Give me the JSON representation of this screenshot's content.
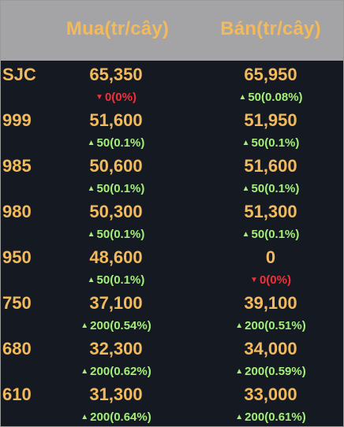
{
  "header": {
    "buy_label": "Mua(tr/cây)",
    "sell_label": "Bán(tr/cây)"
  },
  "colors": {
    "price": "#f2ba5c",
    "up": "#a3ef79",
    "down": "#f1303a",
    "background": "#151a22",
    "header_bg": "#a4a4a6"
  },
  "rows": [
    {
      "name": "SJC",
      "buy": "65,350",
      "sell": "65,950",
      "buy_change": "0(0%)",
      "buy_dir": "down",
      "sell_change": "50(0.08%)",
      "sell_dir": "up"
    },
    {
      "name": "999",
      "buy": "51,600",
      "sell": "51,950",
      "buy_change": "50(0.1%)",
      "buy_dir": "up",
      "sell_change": "50(0.1%)",
      "sell_dir": "up"
    },
    {
      "name": "985",
      "buy": "50,600",
      "sell": "51,600",
      "buy_change": "50(0.1%)",
      "buy_dir": "up",
      "sell_change": "50(0.1%)",
      "sell_dir": "up"
    },
    {
      "name": "980",
      "buy": "50,300",
      "sell": "51,300",
      "buy_change": "50(0.1%)",
      "buy_dir": "up",
      "sell_change": "50(0.1%)",
      "sell_dir": "up"
    },
    {
      "name": "950",
      "buy": "48,600",
      "sell": "0",
      "buy_change": "50(0.1%)",
      "buy_dir": "up",
      "sell_change": "0(0%)",
      "sell_dir": "down"
    },
    {
      "name": "750",
      "buy": "37,100",
      "sell": "39,100",
      "buy_change": "200(0.54%)",
      "buy_dir": "up",
      "sell_change": "200(0.51%)",
      "sell_dir": "up"
    },
    {
      "name": "680",
      "buy": "32,300",
      "sell": "34,000",
      "buy_change": "200(0.62%)",
      "buy_dir": "up",
      "sell_change": "200(0.59%)",
      "sell_dir": "up"
    },
    {
      "name": "610",
      "buy": "31,300",
      "sell": "33,000",
      "buy_change": "200(0.64%)",
      "buy_dir": "up",
      "sell_change": "200(0.61%)",
      "sell_dir": "up"
    }
  ]
}
